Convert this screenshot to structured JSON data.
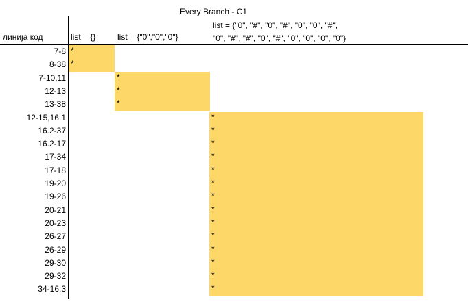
{
  "title": "Every Branch - C1",
  "headers": {
    "line_code": "линија код",
    "col1": "list = {}",
    "col2": "list = {\"0\",\"0\",\"0\"}",
    "col3_line1": "list = {\"0\", \"#\", \"0\", \"#\", \"0\", \"0\", \"#\",",
    "col3_line2": "\"0\", \"#\", \"#\", \"0\", \"#\", \"0\", \"0\", \"0\", \"0\"}"
  },
  "rows": [
    {
      "label": "7-8",
      "column": 1,
      "mark": "*"
    },
    {
      "label": "8-38",
      "column": 1,
      "mark": "*"
    },
    {
      "label": "7-10,11",
      "column": 2,
      "mark": "*"
    },
    {
      "label": "12-13",
      "column": 2,
      "mark": "*"
    },
    {
      "label": "13-38",
      "column": 2,
      "mark": "*"
    },
    {
      "label": "12-15,16.1",
      "column": 3,
      "mark": "*"
    },
    {
      "label": "16.2-37",
      "column": 3,
      "mark": "*"
    },
    {
      "label": "16.2-17",
      "column": 3,
      "mark": "*"
    },
    {
      "label": "17-34",
      "column": 3,
      "mark": "*"
    },
    {
      "label": "17-18",
      "column": 3,
      "mark": "*"
    },
    {
      "label": "19-20",
      "column": 3,
      "mark": "*"
    },
    {
      "label": "19-26",
      "column": 3,
      "mark": "*"
    },
    {
      "label": "20-21",
      "column": 3,
      "mark": "*"
    },
    {
      "label": "20-23",
      "column": 3,
      "mark": "*"
    },
    {
      "label": "26-27",
      "column": 3,
      "mark": "*"
    },
    {
      "label": "26-29",
      "column": 3,
      "mark": "*"
    },
    {
      "label": "29-30",
      "column": 3,
      "mark": "*"
    },
    {
      "label": "29-32",
      "column": 3,
      "mark": "*"
    },
    {
      "label": "34-16.3",
      "column": 3,
      "mark": "*"
    }
  ],
  "colors": {
    "highlight": "#fdd868",
    "grid": "#000000"
  }
}
